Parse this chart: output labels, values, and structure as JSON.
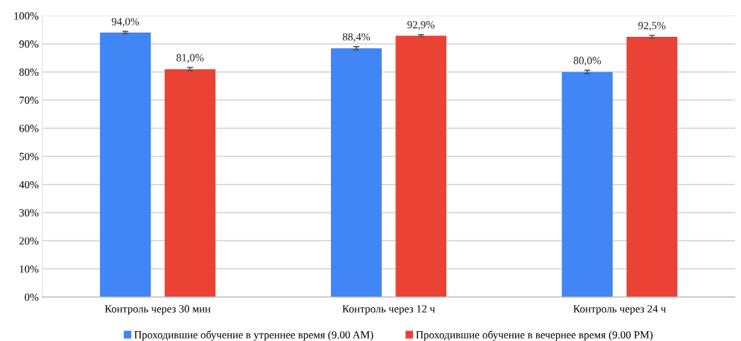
{
  "chart_data": {
    "type": "bar",
    "categories": [
      "Контроль через 30 мин",
      "Контроль через 12 ч",
      "Контроль через 24 ч"
    ],
    "series": [
      {
        "name": "Проходившие обучение в утреннее время (9.00 AM)",
        "color": "#4285f4",
        "values": [
          94.0,
          88.4,
          80.0
        ],
        "errors": [
          0.4,
          0.6,
          0.6
        ],
        "value_labels": [
          "94,0%",
          "88,4%",
          "80,0%"
        ]
      },
      {
        "name": "Проходившие обучение в вечернее время (9.00 PM)",
        "color": "#ea4335",
        "values": [
          81.0,
          92.9,
          92.5
        ],
        "errors": [
          0.6,
          0.4,
          0.5
        ],
        "value_labels": [
          "81,0%",
          "92,9%",
          "92,5%"
        ]
      }
    ],
    "ylim": [
      0,
      100
    ],
    "yticks": [
      {
        "value": 0,
        "label": "0%"
      },
      {
        "value": 10,
        "label": "10%"
      },
      {
        "value": 20,
        "label": "20%"
      },
      {
        "value": 30,
        "label": "30%"
      },
      {
        "value": 40,
        "label": "40%"
      },
      {
        "value": 50,
        "label": "50%"
      },
      {
        "value": 60,
        "label": "60%"
      },
      {
        "value": 70,
        "label": "70%"
      },
      {
        "value": 80,
        "label": "80%"
      },
      {
        "value": 90,
        "label": "90%"
      },
      {
        "value": 100,
        "label": "100%"
      }
    ],
    "grid": "y",
    "legend": "bottom"
  }
}
